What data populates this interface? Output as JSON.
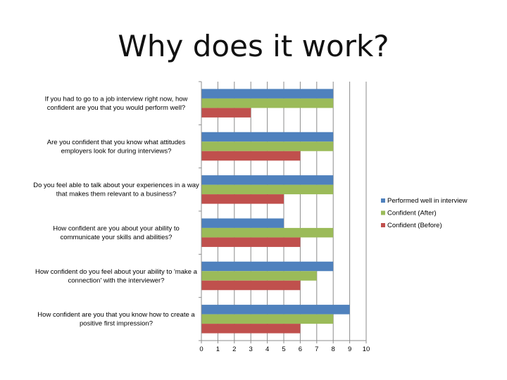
{
  "page": {
    "title": "Why does it work?"
  },
  "chart_data": {
    "type": "bar",
    "orientation": "horizontal",
    "categories": [
      "If you had to go to a job interview right now, how confident are you that you would perform well?",
      "Are you confident that you know what attitudes employers look for during interviews?",
      "Do you feel able to talk about your experiences in a way that makes them relevant to a business?",
      "How confident are you about your ability to communicate your skills and abilities?",
      "How confident do you feel about your ability to 'make a connection' with the interviewer?",
      "How confident are you that you know how to create a positive first impression?"
    ],
    "category_lines": [
      [
        "If you had to go to a job interview right now, how",
        "confident are you that you would perform well?"
      ],
      [
        "Are you confident that you know what attitudes",
        "employers look for during interviews?"
      ],
      [
        "Do you feel able to talk about your experiences in a way",
        "that makes them relevant to a business?"
      ],
      [
        "How confident are you about your ability to",
        "communicate your skills and abilities?"
      ],
      [
        "How confident do you feel about your ability to 'make a",
        "connection' with the interviewer?"
      ],
      [
        "How confident are you that you know how to create a",
        "positive first impression?"
      ]
    ],
    "series": [
      {
        "name": "Performed well in interview",
        "color": "#4F81BD",
        "values": [
          8,
          8,
          8,
          5,
          8,
          9
        ]
      },
      {
        "name": "Confident (After)",
        "color": "#9BBB59",
        "values": [
          8,
          8,
          8,
          8,
          7,
          8
        ]
      },
      {
        "name": "Confident (Before)",
        "color": "#C0504D",
        "values": [
          3,
          6,
          5,
          6,
          6,
          6
        ]
      }
    ],
    "xlim": [
      0,
      10
    ],
    "x_ticks": [
      "0",
      "1",
      "2",
      "3",
      "4",
      "5",
      "6",
      "7",
      "8",
      "9",
      "10"
    ],
    "grid": true,
    "legend_position": "right"
  }
}
